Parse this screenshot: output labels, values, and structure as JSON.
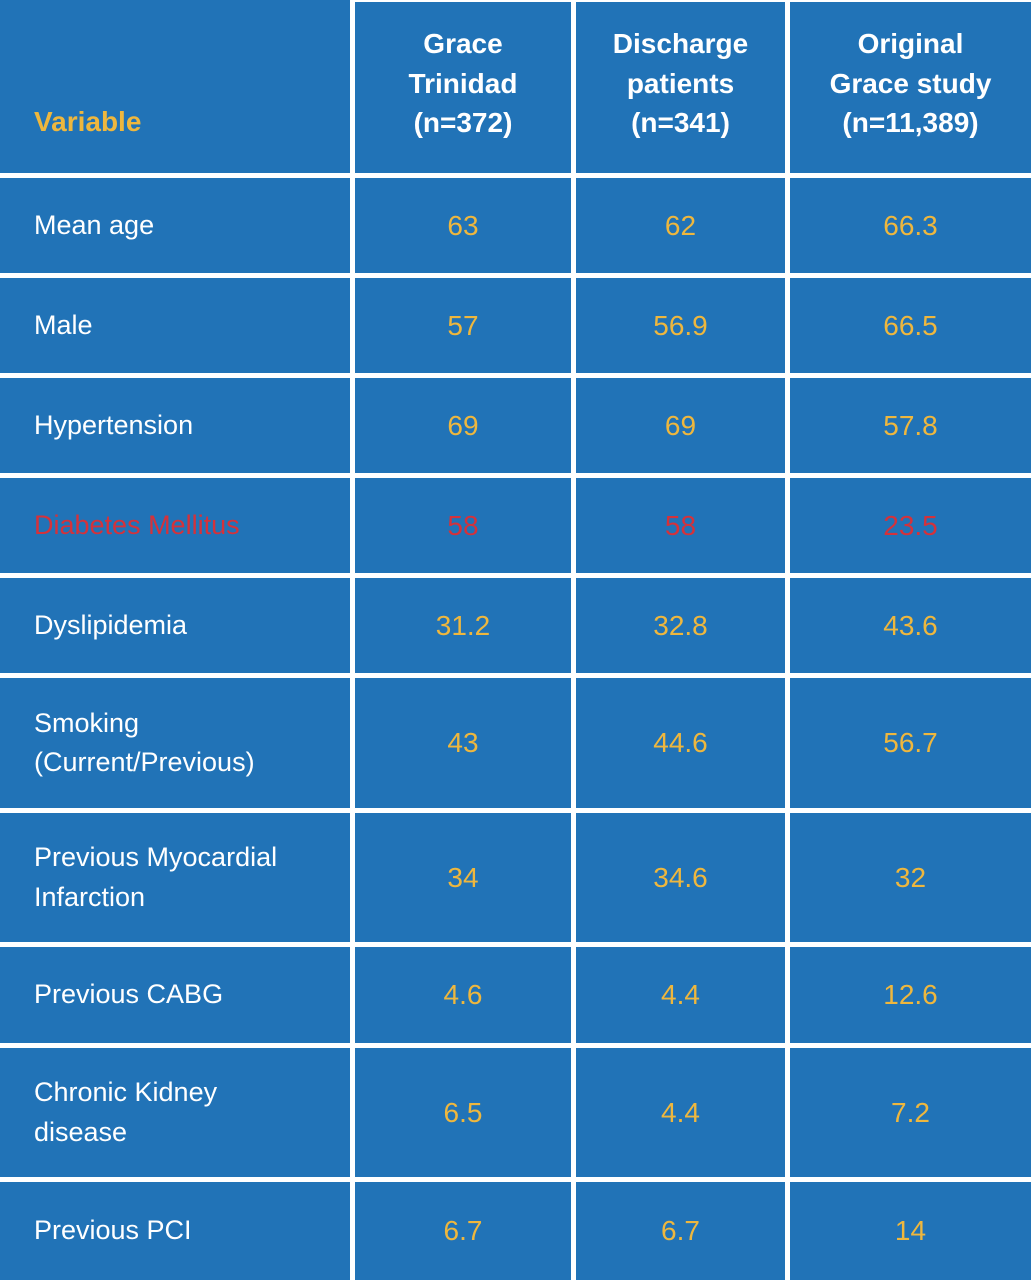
{
  "colors": {
    "background_blue": "#2173B7",
    "value_yellow": "#EEB73E",
    "highlight_red": "#D4323B",
    "grid_white": "#FFFFFF",
    "label_white": "#FFFFFF"
  },
  "chart_data": {
    "type": "table",
    "columns": [
      "Variable",
      "Grace\nTrinidad\n(n=372)",
      "Discharge\npatients\n(n=341)",
      "Original\nGrace study\n(n=11,389)"
    ],
    "rows": [
      {
        "label": "Mean age",
        "values": [
          "63",
          "62",
          "66.3"
        ],
        "highlight": false
      },
      {
        "label": "Male",
        "values": [
          "57",
          "56.9",
          "66.5"
        ],
        "highlight": false
      },
      {
        "label": "Hypertension",
        "values": [
          "69",
          "69",
          "57.8"
        ],
        "highlight": false
      },
      {
        "label": "Diabetes Mellitus",
        "values": [
          "58",
          "58",
          "23.5"
        ],
        "highlight": true
      },
      {
        "label": "Dyslipidemia",
        "values": [
          "31.2",
          "32.8",
          "43.6"
        ],
        "highlight": false
      },
      {
        "label": "Smoking\n(Current/Previous)",
        "values": [
          "43",
          "44.6",
          "56.7"
        ],
        "highlight": false
      },
      {
        "label": "Previous Myocardial\nInfarction",
        "values": [
          "34",
          "34.6",
          "32"
        ],
        "highlight": false
      },
      {
        "label": "Previous CABG",
        "values": [
          "4.6",
          "4.4",
          "12.6"
        ],
        "highlight": false
      },
      {
        "label": "Chronic Kidney\ndisease",
        "values": [
          "6.5",
          "4.4",
          "7.2"
        ],
        "highlight": false
      },
      {
        "label": "Previous PCI",
        "values": [
          "6.7",
          "6.7",
          "14"
        ],
        "highlight": false
      }
    ]
  }
}
